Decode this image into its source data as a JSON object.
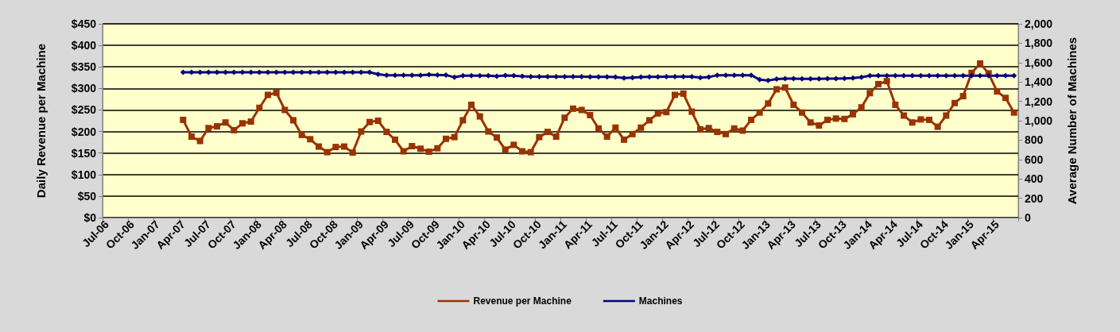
{
  "chart_data": {
    "type": "line",
    "ylabel": "Daily Revenue per Machine",
    "y2label": "Average Number of Machines",
    "categories": [
      "Jul-06",
      null,
      null,
      "Oct-06",
      null,
      null,
      "Jan-07",
      null,
      null,
      "Apr-07",
      null,
      null,
      "Jul-07",
      null,
      null,
      "Oct-07",
      null,
      null,
      "Jan-08",
      null,
      null,
      "Apr-08",
      null,
      null,
      "Jul-08",
      null,
      null,
      "Oct-08",
      null,
      null,
      "Jan-09",
      null,
      null,
      "Apr-09",
      null,
      null,
      "Jul-09",
      null,
      null,
      "Oct-09",
      null,
      null,
      "Jan-10",
      null,
      null,
      "Apr-10",
      null,
      null,
      "Jul-10",
      null,
      null,
      "Oct-10",
      null,
      null,
      "Jan-11",
      null,
      null,
      "Apr-11",
      null,
      null,
      "Jul-11",
      null,
      null,
      "Oct-11",
      null,
      null,
      "Jan-12",
      null,
      null,
      "Apr-12",
      null,
      null,
      "Jul-12",
      null,
      null,
      "Oct-12",
      null,
      null,
      "Jan-13",
      null,
      null,
      "Apr-13",
      null,
      null,
      "Jul-13",
      null,
      null,
      "Oct-13",
      null,
      null,
      "Jan-14",
      null,
      null,
      "Apr-14",
      null,
      null,
      "Jul-14",
      null,
      null,
      "Oct-14",
      null,
      null,
      "Jan-15",
      null,
      null,
      "Apr-15",
      null,
      null
    ],
    "series": [
      {
        "name": "Revenue per Machine",
        "color": "#993300",
        "marker": "square",
        "values": [
          null,
          null,
          null,
          null,
          null,
          null,
          null,
          null,
          null,
          227,
          188,
          178,
          208,
          212,
          221,
          203,
          219,
          223,
          255,
          285,
          290,
          250,
          226,
          192,
          182,
          165,
          152,
          164,
          165,
          151,
          200,
          222,
          225,
          199,
          181,
          154,
          166,
          160,
          153,
          161,
          183,
          187,
          226,
          262,
          235,
          200,
          186,
          158,
          169,
          154,
          152,
          187,
          199,
          188,
          232,
          253,
          250,
          238,
          207,
          188,
          209,
          181,
          194,
          209,
          226,
          242,
          245,
          285,
          288,
          246,
          205,
          208,
          199,
          194,
          207,
          202,
          227,
          244,
          265,
          298,
          302,
          262,
          244,
          221,
          214,
          227,
          230,
          229,
          240,
          256,
          289,
          310,
          317,
          262,
          237,
          221,
          228,
          227,
          211,
          237,
          266,
          282,
          336,
          358,
          335,
          293,
          278,
          244
        ]
      },
      {
        "name": "Machines",
        "color": "#000080",
        "marker": "diamond",
        "axis": "y2",
        "values": [
          null,
          null,
          null,
          null,
          null,
          null,
          null,
          null,
          null,
          1500,
          1500,
          1500,
          1500,
          1500,
          1500,
          1500,
          1500,
          1500,
          1500,
          1500,
          1500,
          1500,
          1500,
          1500,
          1500,
          1500,
          1500,
          1500,
          1500,
          1500,
          1500,
          1500,
          1480,
          1470,
          1470,
          1470,
          1470,
          1470,
          1475,
          1472,
          1472,
          1448,
          1465,
          1465,
          1465,
          1465,
          1460,
          1468,
          1465,
          1458,
          1455,
          1455,
          1455,
          1455,
          1455,
          1455,
          1455,
          1452,
          1452,
          1452,
          1450,
          1440,
          1445,
          1450,
          1452,
          1452,
          1455,
          1455,
          1455,
          1455,
          1445,
          1450,
          1470,
          1470,
          1470,
          1470,
          1470,
          1425,
          1415,
          1430,
          1435,
          1435,
          1432,
          1432,
          1432,
          1435,
          1435,
          1437,
          1440,
          1448,
          1465,
          1465,
          1465,
          1465,
          1465,
          1465,
          1465,
          1465,
          1465,
          1465,
          1465,
          1465,
          1465,
          1465,
          1465,
          1465,
          1465,
          1465
        ]
      }
    ],
    "ylim": [
      0,
      450
    ],
    "yticks": [
      {
        "value": 0,
        "label": "$0"
      },
      {
        "value": 50,
        "label": "$50"
      },
      {
        "value": 100,
        "label": "$100"
      },
      {
        "value": 150,
        "label": "$150"
      },
      {
        "value": 200,
        "label": "$200"
      },
      {
        "value": 250,
        "label": "$250"
      },
      {
        "value": 300,
        "label": "$300"
      },
      {
        "value": 350,
        "label": "$350"
      },
      {
        "value": 400,
        "label": "$400"
      },
      {
        "value": 450,
        "label": "$450"
      }
    ],
    "y2lim": [
      0,
      2000
    ],
    "y2ticks": [
      0,
      200,
      400,
      600,
      800,
      {
        "value": 1000,
        "label": "1,000"
      },
      {
        "value": 1200,
        "label": "1,200"
      },
      {
        "value": 1400,
        "label": "1,400"
      },
      {
        "value": 1600,
        "label": "1,600"
      },
      {
        "value": 1800,
        "label": "1,800"
      },
      {
        "value": 2000,
        "label": "2,000"
      }
    ],
    "grid": "y",
    "legend": "bottom",
    "line_style": "solid"
  }
}
